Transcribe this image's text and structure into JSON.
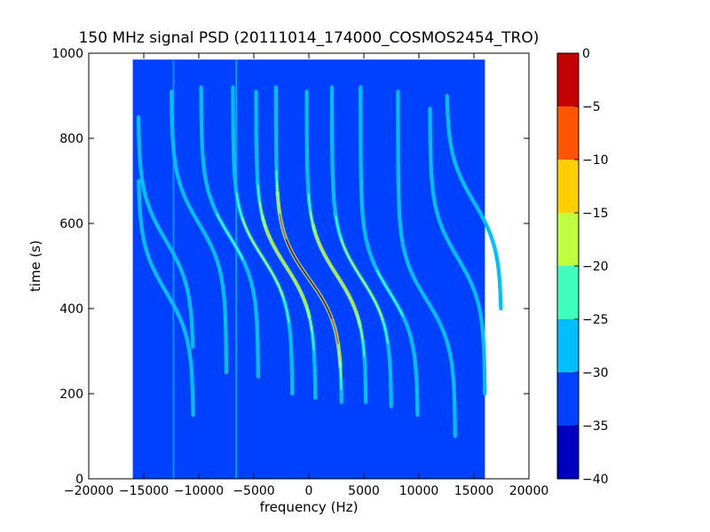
{
  "chart_data": {
    "type": "heatmap",
    "title": "150 MHz signal PSD (20111014_174000_COSMOS2454_TRO)",
    "xlabel": "frequency (Hz)",
    "ylabel": "time (s)",
    "xlim": [
      -20000,
      20000
    ],
    "ylim": [
      0,
      1000
    ],
    "x_ticks": [
      -20000,
      -15000,
      -10000,
      -5000,
      0,
      5000,
      10000,
      15000,
      20000
    ],
    "x_tick_labels": [
      "−20000",
      "−15000",
      "−10000",
      "−5000",
      "0",
      "5000",
      "10000",
      "15000",
      "20000"
    ],
    "y_ticks": [
      0,
      200,
      400,
      600,
      800,
      1000
    ],
    "y_tick_labels": [
      "0",
      "200",
      "400",
      "600",
      "800",
      "1000"
    ],
    "data_extent": {
      "freq": [
        -16000,
        16000
      ],
      "time": [
        0,
        985
      ]
    },
    "colorbar": {
      "range": [
        -40,
        0
      ],
      "levels": [
        -40,
        -35,
        -30,
        -25,
        -20,
        -15,
        -10,
        -5,
        0
      ],
      "tick_labels": [
        "−40",
        "−35",
        "−30",
        "−25",
        "−20",
        "−15",
        "−10",
        "−5",
        "0"
      ],
      "colors": [
        "#0000bf",
        "#0040ff",
        "#00bfff",
        "#40ffbf",
        "#bfff40",
        "#ffcf00",
        "#ff5500",
        "#c40000"
      ]
    },
    "background_level": -33,
    "vertical_lines": [
      {
        "freq": -12300,
        "level": -27
      },
      {
        "freq": -6600,
        "level": -26
      },
      {
        "freq": 11100,
        "level": -31
      }
    ],
    "traces": [
      {
        "center_freq": 0,
        "center_time": 470,
        "shift_hz": 3000,
        "time_start": 180,
        "time_end": 920,
        "peak_level": -2
      },
      {
        "center_freq": -2100,
        "center_time": 500,
        "shift_hz": 2700,
        "time_start": 190,
        "time_end": 910,
        "peak_level": -12
      },
      {
        "center_freq": 2500,
        "center_time": 480,
        "shift_hz": 2700,
        "time_start": 180,
        "time_end": 910,
        "peak_level": -12
      },
      {
        "center_freq": -4200,
        "center_time": 520,
        "shift_hz": 2700,
        "time_start": 200,
        "time_end": 920,
        "peak_level": -17
      },
      {
        "center_freq": 4800,
        "center_time": 470,
        "shift_hz": 2700,
        "time_start": 170,
        "time_end": 920,
        "peak_level": -17
      },
      {
        "center_freq": -7200,
        "center_time": 570,
        "shift_hz": 2600,
        "time_start": 240,
        "time_end": 920,
        "peak_level": -24
      },
      {
        "center_freq": 7300,
        "center_time": 440,
        "shift_hz": 2600,
        "time_start": 150,
        "time_end": 920,
        "peak_level": -24
      },
      {
        "center_freq": -10000,
        "center_time": 600,
        "shift_hz": 2500,
        "time_start": 250,
        "time_end": 910,
        "peak_level": -27
      },
      {
        "center_freq": 10700,
        "center_time": 420,
        "shift_hz": 2600,
        "time_start": 100,
        "time_end": 910,
        "peak_level": -27
      },
      {
        "center_freq": -13000,
        "center_time": 560,
        "shift_hz": 2500,
        "time_start": 310,
        "time_end": 850,
        "peak_level": -28
      },
      {
        "center_freq": 13500,
        "center_time": 520,
        "shift_hz": 2500,
        "time_start": 200,
        "time_end": 870,
        "peak_level": -28
      },
      {
        "center_freq": -13000,
        "center_time": 440,
        "shift_hz": 2500,
        "time_start": 150,
        "time_end": 700,
        "peak_level": -27
      },
      {
        "center_freq": 15000,
        "center_time": 650,
        "shift_hz": 2500,
        "time_start": 400,
        "time_end": 900,
        "peak_level": -29
      }
    ]
  }
}
